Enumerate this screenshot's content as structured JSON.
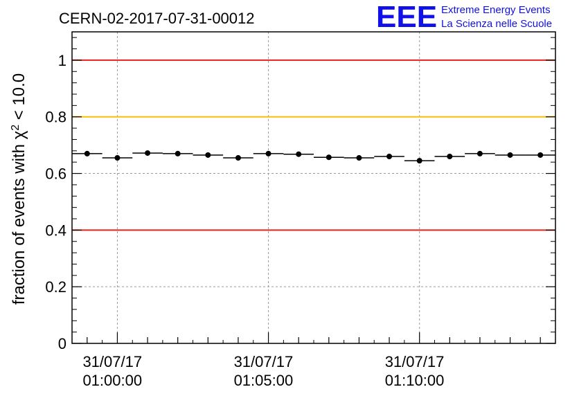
{
  "chart_data": {
    "type": "scatter",
    "title": "CERN-02-2017-07-31-00012",
    "ylabel": "fraction of events with χ² < 10.0",
    "ylabel_parts": {
      "pre": "fraction of events with χ",
      "sup": "2",
      "post": " < 10.0"
    },
    "xlabel": "",
    "ylim": [
      0,
      1.1
    ],
    "yticks": [
      0,
      0.2,
      0.4,
      0.6,
      0.8,
      1
    ],
    "ytick_labels": [
      "0",
      "0.2",
      "0.4",
      "0.6",
      "0.8",
      "1"
    ],
    "xlim_minutes": [
      -1.5,
      14.5
    ],
    "xticks_minutes": [
      0,
      5,
      10
    ],
    "xtick_labels": [
      {
        "date": "31/07/17",
        "time": "01:00:00"
      },
      {
        "date": "31/07/17",
        "time": "01:05:00"
      },
      {
        "date": "31/07/17",
        "time": "01:10:00"
      }
    ],
    "bin_width_minutes": 1,
    "x_minutes": [
      -1,
      0,
      1,
      2,
      3,
      4,
      5,
      6,
      7,
      8,
      9,
      10,
      11,
      12,
      13,
      14
    ],
    "x_time": [
      "00:59:00",
      "01:00:00",
      "01:01:00",
      "01:02:00",
      "01:03:00",
      "01:04:00",
      "01:05:00",
      "01:06:00",
      "01:07:00",
      "01:08:00",
      "01:09:00",
      "01:10:00",
      "01:11:00",
      "01:12:00",
      "01:13:00",
      "01:14:00"
    ],
    "values": [
      0.67,
      0.655,
      0.672,
      0.67,
      0.665,
      0.655,
      0.67,
      0.668,
      0.657,
      0.655,
      0.66,
      0.645,
      0.66,
      0.67,
      0.665,
      0.665
    ],
    "reference_lines": [
      {
        "y": 1.0,
        "color": "#e8201a"
      },
      {
        "y": 0.8,
        "color": "#f5c000"
      },
      {
        "y": 0.4,
        "color": "#e8201a"
      }
    ],
    "grid": true
  },
  "logo": {
    "mark": "EEE",
    "line1": "Extreme Energy Events",
    "line2": "La Scienza nelle Scuole",
    "color": "#1010e8"
  }
}
